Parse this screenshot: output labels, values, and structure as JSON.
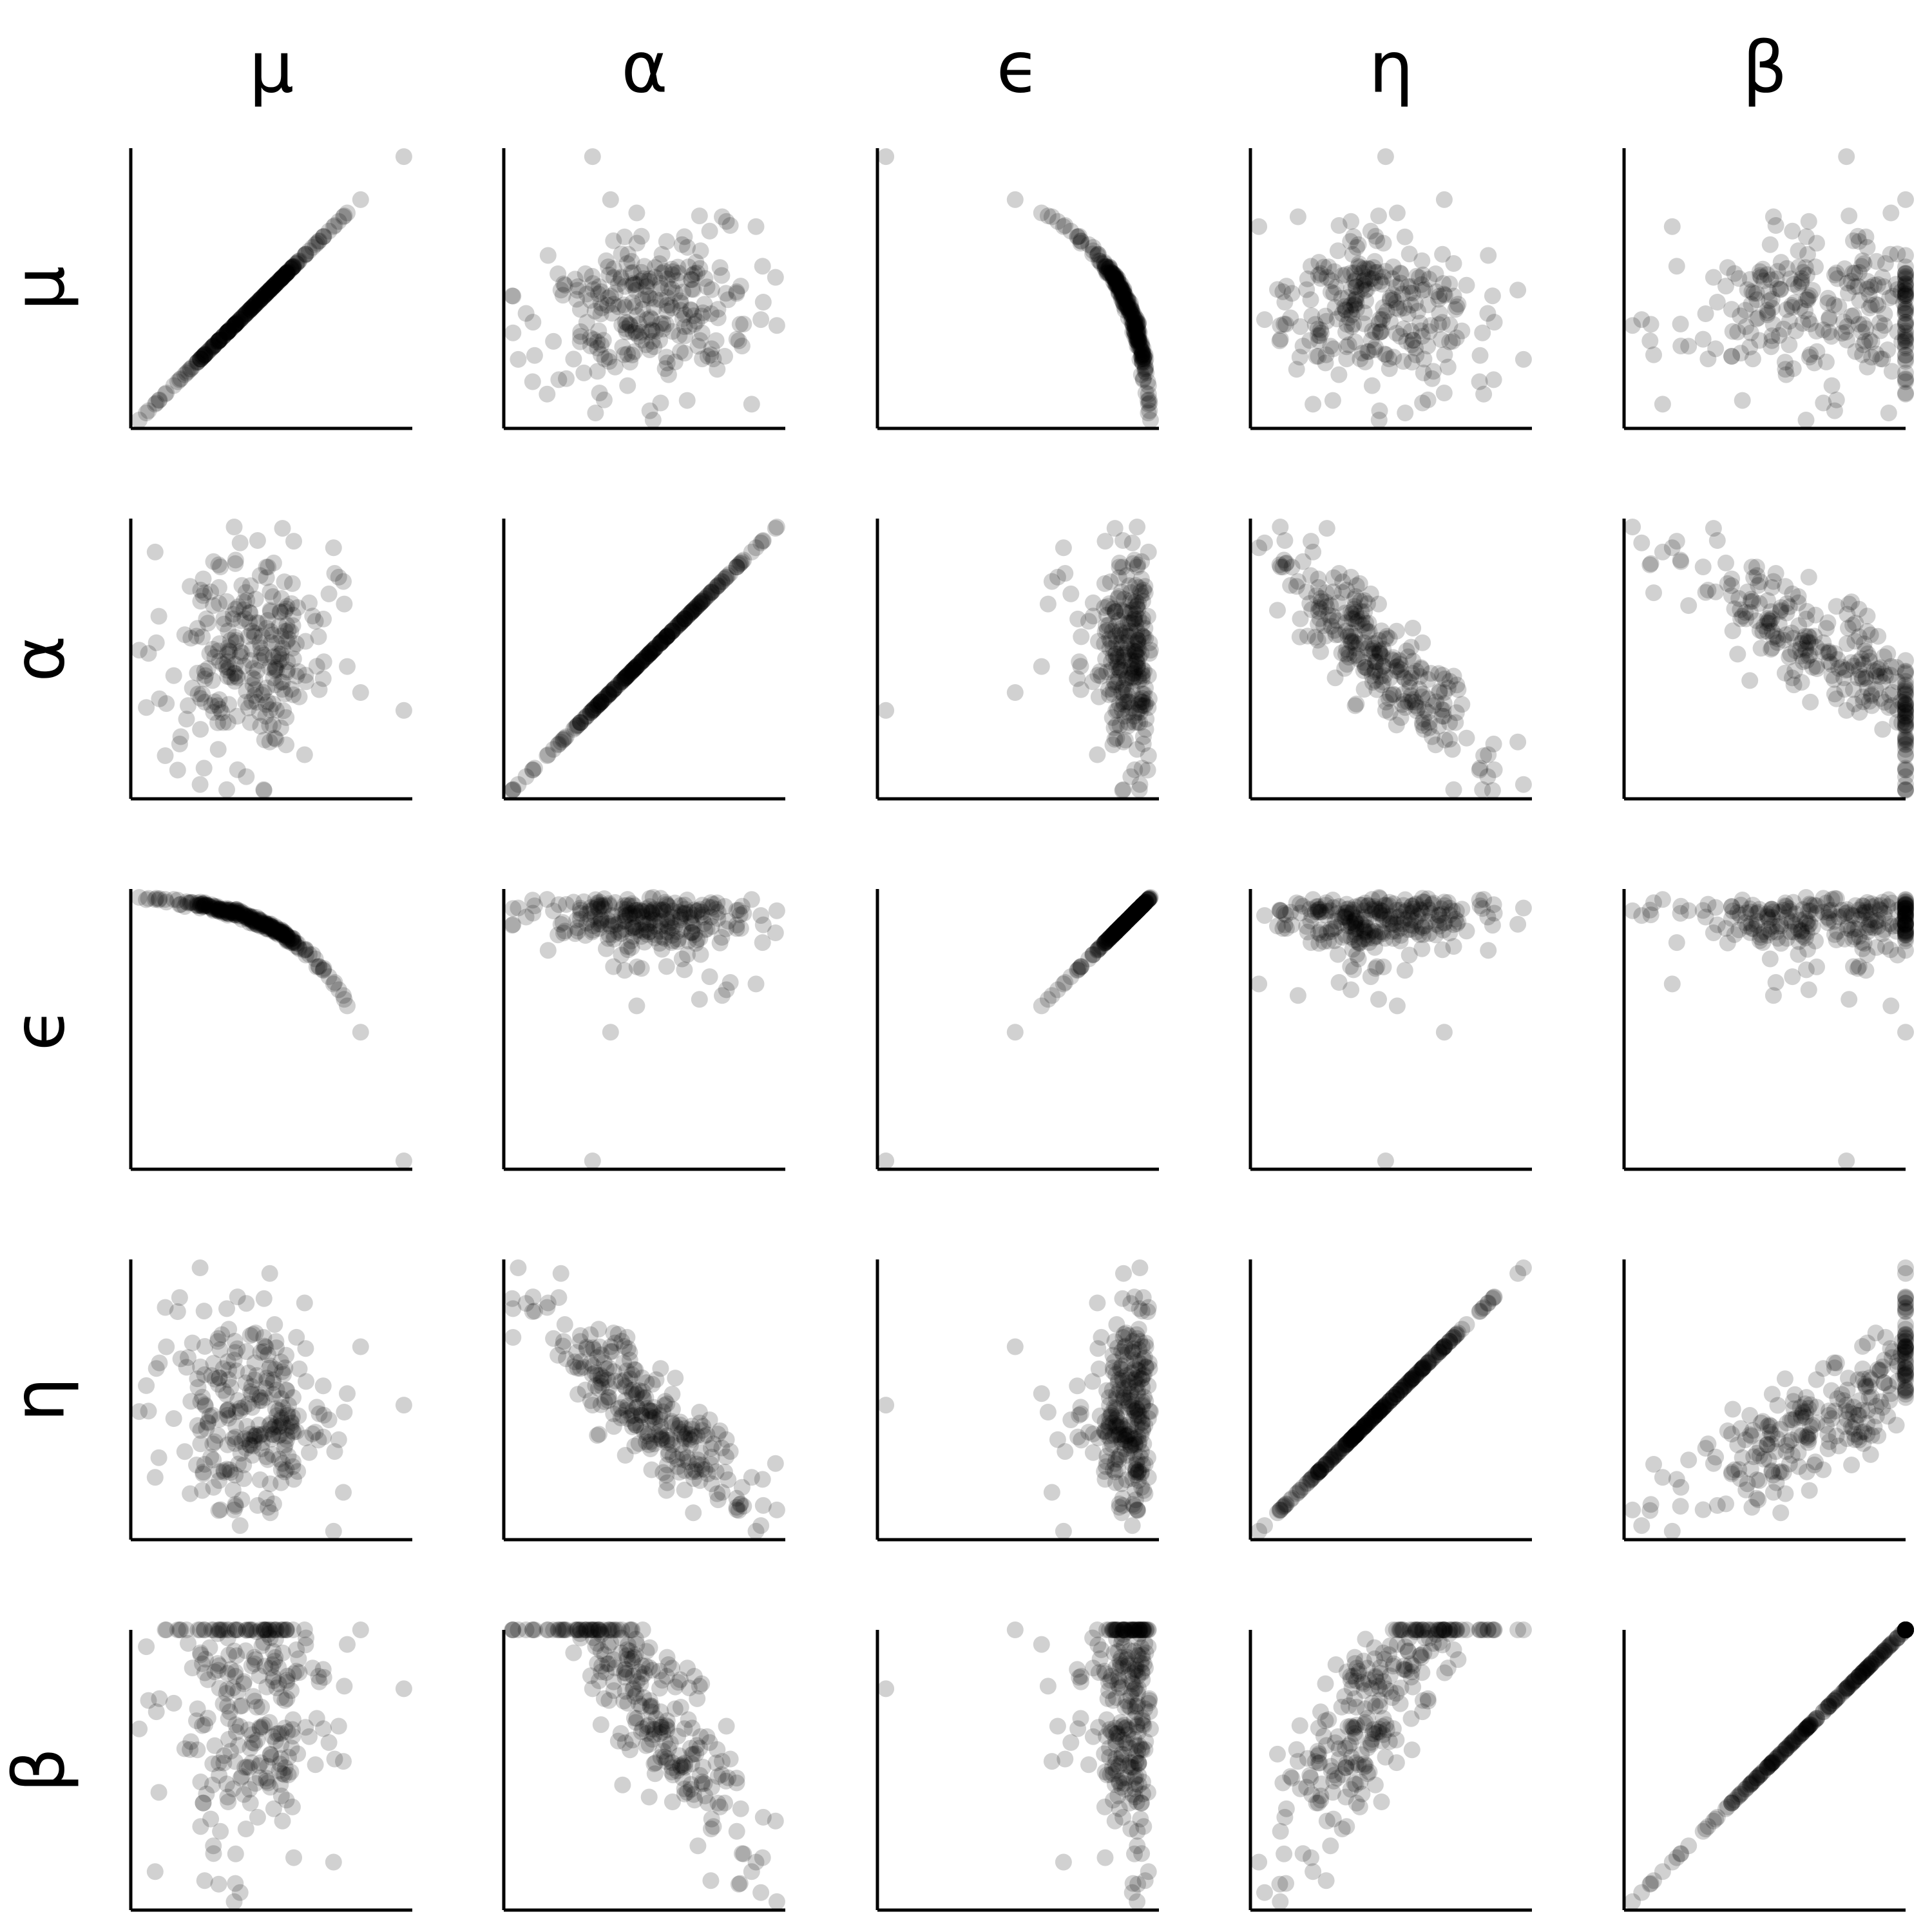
{
  "chart_data": {
    "type": "scatter",
    "layout": "pair-plot-matrix",
    "variables": [
      "μ",
      "α",
      "ϵ",
      "η",
      "β"
    ],
    "column_labels": [
      "μ",
      "α",
      "ϵ",
      "η",
      "β"
    ],
    "row_labels": [
      "μ",
      "α",
      "ϵ",
      "η",
      "β"
    ],
    "axes": "left and bottom spines only, no ticks, no tick labels",
    "grid": false,
    "legend": "none",
    "points_per_panel": 260,
    "point_color": "#000000",
    "point_opacity": 0.18,
    "background": "#ffffff",
    "marginals": {
      "μ": "symmetric, roughly normal",
      "α": "symmetric, roughly normal",
      "ϵ": "decreasing curved function of μ",
      "η": "symmetric, roughly normal",
      "β": "skewed, piled up at its upper bound"
    },
    "pairwise_relationships": [
      {
        "pair": [
          "μ",
          "μ"
        ],
        "relationship": "identity"
      },
      {
        "pair": [
          "α",
          "α"
        ],
        "relationship": "identity"
      },
      {
        "pair": [
          "ϵ",
          "ϵ"
        ],
        "relationship": "identity"
      },
      {
        "pair": [
          "η",
          "η"
        ],
        "relationship": "identity"
      },
      {
        "pair": [
          "β",
          "β"
        ],
        "relationship": "identity"
      },
      {
        "pair": [
          "μ",
          "ϵ"
        ],
        "relationship": "strong negative, concave curve"
      },
      {
        "pair": [
          "α",
          "η"
        ],
        "relationship": "strong negative linear"
      },
      {
        "pair": [
          "α",
          "β"
        ],
        "relationship": "negative, β bounded above"
      },
      {
        "pair": [
          "μ",
          "α"
        ],
        "relationship": "none"
      },
      {
        "pair": [
          "μ",
          "η"
        ],
        "relationship": "none"
      },
      {
        "pair": [
          "μ",
          "β"
        ],
        "relationship": "weak, β bounded above"
      },
      {
        "pair": [
          "ϵ",
          "α"
        ],
        "relationship": "none"
      },
      {
        "pair": [
          "ϵ",
          "η"
        ],
        "relationship": "none"
      },
      {
        "pair": [
          "ϵ",
          "β"
        ],
        "relationship": "weak, β bounded above"
      },
      {
        "pair": [
          "η",
          "β"
        ],
        "relationship": "weak positive, β bounded above"
      }
    ]
  }
}
